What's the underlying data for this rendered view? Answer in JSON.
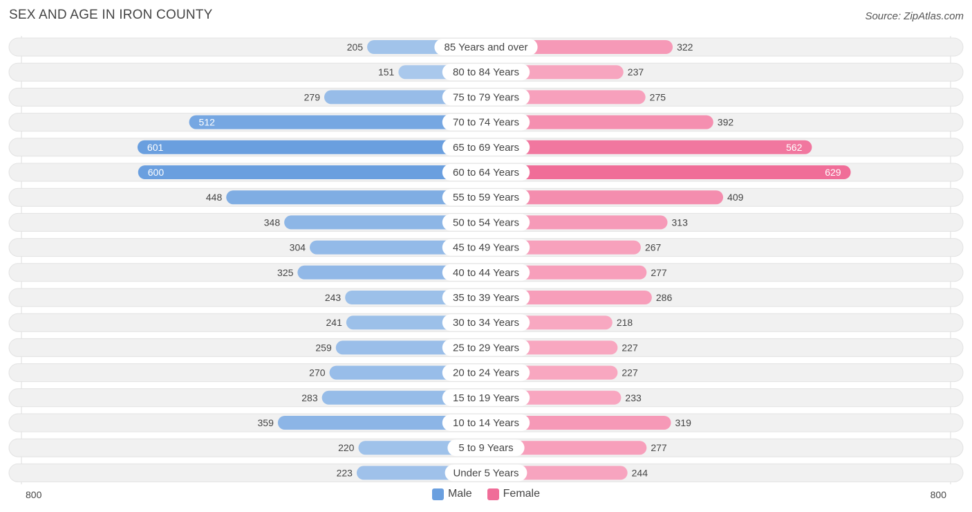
{
  "title": "SEX AND AGE IN IRON COUNTY",
  "source": "Source: ZipAtlas.com",
  "legend": {
    "male": "Male",
    "female": "Female"
  },
  "axis": {
    "left_label": "800",
    "right_label": "800"
  },
  "colors": {
    "male_light": "#a9c8ec",
    "male_dark": "#6a9fdf",
    "female_light": "#f8a9c2",
    "female_dark": "#f06d98",
    "row_bg": "#f1f1f1"
  },
  "chart_data": {
    "type": "bar",
    "title": "SEX AND AGE IN IRON COUNTY",
    "xlim": [
      0,
      800
    ],
    "categories": [
      "85 Years and over",
      "80 to 84 Years",
      "75 to 79 Years",
      "70 to 74 Years",
      "65 to 69 Years",
      "60 to 64 Years",
      "55 to 59 Years",
      "50 to 54 Years",
      "45 to 49 Years",
      "40 to 44 Years",
      "35 to 39 Years",
      "30 to 34 Years",
      "25 to 29 Years",
      "20 to 24 Years",
      "15 to 19 Years",
      "10 to 14 Years",
      "5 to 9 Years",
      "Under 5 Years"
    ],
    "series": [
      {
        "name": "Male",
        "values": [
          205,
          151,
          279,
          512,
          601,
          600,
          448,
          348,
          304,
          325,
          243,
          241,
          259,
          270,
          283,
          359,
          220,
          223
        ]
      },
      {
        "name": "Female",
        "values": [
          322,
          237,
          275,
          392,
          562,
          629,
          409,
          313,
          267,
          277,
          286,
          218,
          227,
          227,
          233,
          319,
          277,
          244
        ]
      }
    ]
  }
}
